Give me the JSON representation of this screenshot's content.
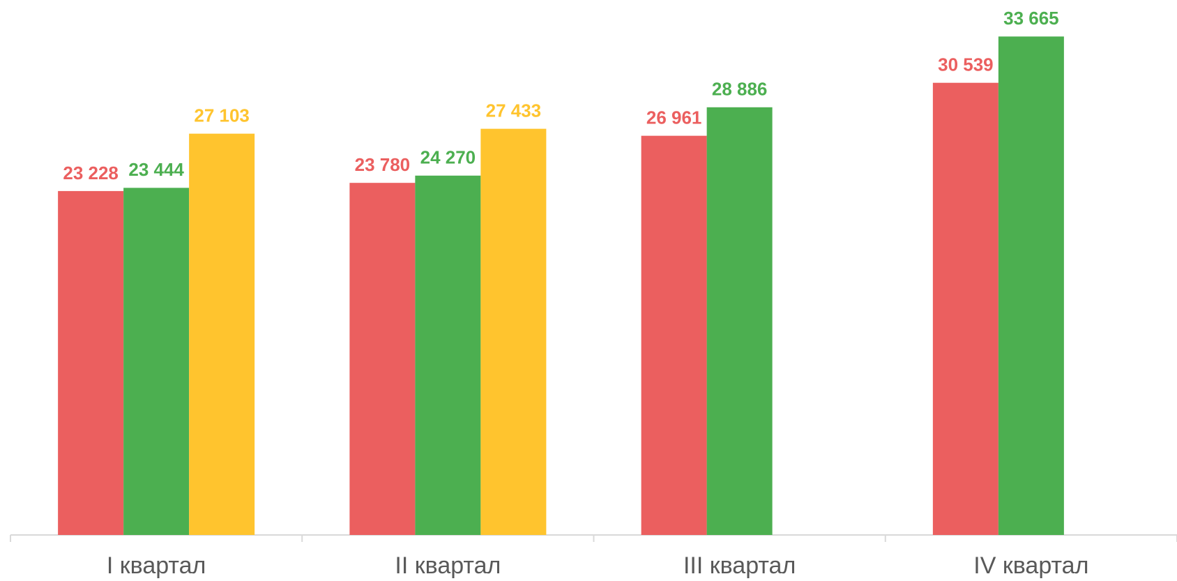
{
  "chart_data": {
    "type": "bar",
    "categories": [
      "I квартал",
      "II квартал",
      "III квартал",
      "IV квартал"
    ],
    "series": [
      {
        "color": "#eb5f5f",
        "values": [
          23228,
          23780,
          26961,
          30539
        ],
        "value_labels": [
          "23 228",
          "23 780",
          "26 961",
          "30 539"
        ]
      },
      {
        "color": "#4caf50",
        "values": [
          23444,
          24270,
          28886,
          33665
        ],
        "value_labels": [
          "23 444",
          "24 270",
          "28 886",
          "33 665"
        ]
      },
      {
        "color": "#ffc42e",
        "values": [
          27103,
          27433,
          null,
          null
        ],
        "value_labels": [
          "27 103",
          "27 433",
          null,
          null
        ]
      }
    ],
    "ylim": [
      0,
      35000
    ]
  }
}
